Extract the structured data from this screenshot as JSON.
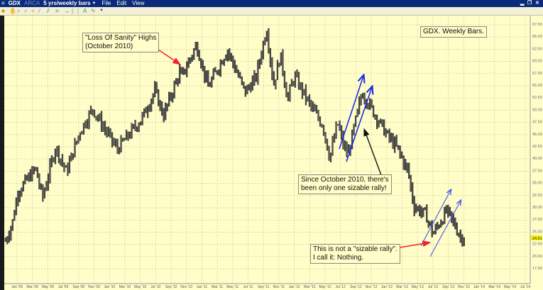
{
  "window": {
    "symbol": "GDX",
    "exchange": "ARCA",
    "timeframe": "5 yrs/weekly bars",
    "menu": [
      "File",
      "Edit",
      "View"
    ],
    "window_controls": [
      "minimize",
      "restore",
      "close"
    ]
  },
  "toolbar": {
    "icons": [
      "pointer-icon",
      "hand-icon",
      "zoom-in-icon",
      "zoom-out-icon",
      "crosshair-icon",
      "trendline-icon",
      "channel-icon",
      "fibonacci-icon",
      "text-icon",
      "arrow-icon",
      "menu-chevron-icon"
    ]
  },
  "annotations": {
    "sanity_line1": "\"Loss Of Sanity\" Highs",
    "sanity_line2": "(October 2010)",
    "title_note": "GDX. Weekly Bars.",
    "rally_line1": "Since October 2010, there's",
    "rally_line2": "been only one sizable rally!",
    "nothing_line1": "This is not a \"sizable rally\".",
    "nothing_line2": "I call it:  Nothing."
  },
  "colors": {
    "background": "#fffdc8",
    "bars": "#3a3a3a",
    "red_arrow": "#ee2233",
    "blue_arrow": "#1a2ee8",
    "title_bar": "#0a2a7a",
    "last_price_highlight": "#f4f000"
  },
  "chart_data": {
    "type": "ohlc",
    "title": "GDX. Weekly Bars.",
    "y_ticks": [
      "67.50",
      "65.00",
      "62.50",
      "60.00",
      "57.50",
      "55.00",
      "52.50",
      "50.00",
      "47.50",
      "45.00",
      "42.50",
      "40.00",
      "37.50",
      "35.00",
      "32.50",
      "30.00",
      "27.50",
      "25.00",
      "22.50",
      "20.00",
      "17.50"
    ],
    "ylim": [
      17.5,
      67.5
    ],
    "last_price": "24.61",
    "x_ticks": [
      "Jan '09",
      "Mar '09",
      "May '09",
      "Jul '09",
      "Sep '09",
      "Nov '09",
      "Jan '10",
      "Mar '10",
      "May '10",
      "Jul '10",
      "Sep '10",
      "Nov '10",
      "Jan '11",
      "Mar '11",
      "May '11",
      "Jul '11",
      "Sep '11",
      "Nov '11",
      "Jan '12",
      "Mar '12",
      "May '12",
      "Jul '12",
      "Sep '12",
      "Nov '12",
      "Jan '13",
      "Mar '13",
      "May '13",
      "Jul '13",
      "Sep '13",
      "Nov '13",
      "Jan '14",
      "Mar '14",
      "May '14",
      "Jul '14"
    ],
    "x_unit": "months since Jan 2009",
    "grid": true,
    "price_path": [
      {
        "t": -1.5,
        "p": 23.2
      },
      {
        "t": -0.6,
        "p": 27
      },
      {
        "t": 0.1,
        "p": 33.3
      },
      {
        "t": 2.4,
        "p": 38
      },
      {
        "t": 3.3,
        "p": 32
      },
      {
        "t": 5.0,
        "p": 42.5
      },
      {
        "t": 6.4,
        "p": 37.3
      },
      {
        "t": 8.1,
        "p": 45.4
      },
      {
        "t": 9.8,
        "p": 50.3
      },
      {
        "t": 10.7,
        "p": 47.9
      },
      {
        "t": 13.0,
        "p": 42
      },
      {
        "t": 16.2,
        "p": 48.3
      },
      {
        "t": 17.9,
        "p": 54
      },
      {
        "t": 19.0,
        "p": 48.9
      },
      {
        "t": 19.9,
        "p": 52.7
      },
      {
        "t": 21.3,
        "p": 58.5
      },
      {
        "t": 21.3,
        "p": 56.6
      },
      {
        "t": 23.3,
        "p": 63.4
      },
      {
        "t": 24.8,
        "p": 54.7
      },
      {
        "t": 27.3,
        "p": 62.4
      },
      {
        "t": 29.6,
        "p": 53.7
      },
      {
        "t": 31.0,
        "p": 56.6
      },
      {
        "t": 32.4,
        "p": 66.8
      },
      {
        "t": 33.3,
        "p": 55.1
      },
      {
        "t": 34.2,
        "p": 61.4
      },
      {
        "t": 35.1,
        "p": 52.2
      },
      {
        "t": 36.0,
        "p": 57
      },
      {
        "t": 38.3,
        "p": 50.3
      },
      {
        "t": 39.7,
        "p": 46.9
      },
      {
        "t": 40.6,
        "p": 40.2
      },
      {
        "t": 41.6,
        "p": 47.4
      },
      {
        "t": 42.5,
        "p": 42.1
      },
      {
        "t": 43.0,
        "p": 41.1
      },
      {
        "t": 44.8,
        "p": 53.7
      },
      {
        "t": 46.2,
        "p": 49.8
      },
      {
        "t": 48.0,
        "p": 45
      },
      {
        "t": 49.4,
        "p": 42.1
      },
      {
        "t": 50.8,
        "p": 37.3
      },
      {
        "t": 51.5,
        "p": 30.4
      },
      {
        "t": 53.1,
        "p": 28.5
      },
      {
        "t": 54.0,
        "p": 24.6
      },
      {
        "t": 55.8,
        "p": 29.4
      },
      {
        "t": 56.8,
        "p": 26.5
      },
      {
        "t": 57.7,
        "p": 23.6
      },
      {
        "t": 58.2,
        "p": 24.6
      }
    ]
  }
}
